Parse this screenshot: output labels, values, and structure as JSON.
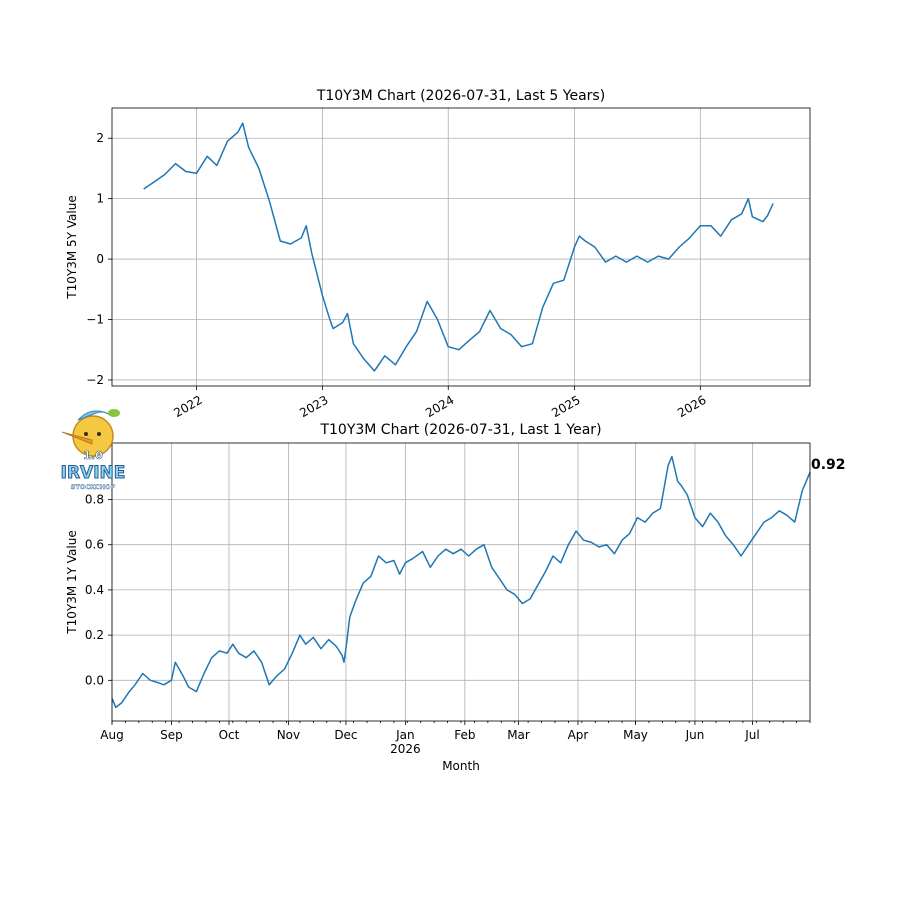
{
  "logo": {
    "text_top": "1.0",
    "text_main": "IRVINE",
    "text_sub": "STOCKCHOP"
  },
  "chart_data": [
    {
      "type": "line",
      "title": "T10Y3M Chart (2026-07-31, Last 5 Years)",
      "xlabel": "",
      "ylabel": "T10Y3M 5Y Value",
      "xlim": [
        "2021-05-01",
        "2026-11-15"
      ],
      "ylim": [
        -2.1,
        2.5
      ],
      "x_ticks": [
        {
          "date": "2022-01-01",
          "label": "2022"
        },
        {
          "date": "2023-01-01",
          "label": "2023"
        },
        {
          "date": "2024-01-01",
          "label": "2024"
        },
        {
          "date": "2025-01-01",
          "label": "2025"
        },
        {
          "date": "2026-01-01",
          "label": "2026"
        }
      ],
      "y_ticks": [
        -2,
        -1,
        0,
        1,
        2
      ],
      "grid": true,
      "series": [
        {
          "color": "#1f77b4",
          "points": [
            [
              "2021-08-01",
              1.16
            ],
            [
              "2021-09-01",
              1.28
            ],
            [
              "2021-10-01",
              1.4
            ],
            [
              "2021-11-01",
              1.58
            ],
            [
              "2021-12-01",
              1.45
            ],
            [
              "2022-01-01",
              1.42
            ],
            [
              "2022-02-01",
              1.7
            ],
            [
              "2022-03-01",
              1.55
            ],
            [
              "2022-04-01",
              1.95
            ],
            [
              "2022-05-01",
              2.1
            ],
            [
              "2022-05-15",
              2.25
            ],
            [
              "2022-06-01",
              1.85
            ],
            [
              "2022-07-01",
              1.5
            ],
            [
              "2022-08-01",
              0.95
            ],
            [
              "2022-09-01",
              0.3
            ],
            [
              "2022-10-01",
              0.25
            ],
            [
              "2022-11-01",
              0.35
            ],
            [
              "2022-11-15",
              0.55
            ],
            [
              "2022-12-01",
              0.1
            ],
            [
              "2023-01-01",
              -0.6
            ],
            [
              "2023-01-20",
              -0.95
            ],
            [
              "2023-02-01",
              -1.15
            ],
            [
              "2023-03-01",
              -1.05
            ],
            [
              "2023-03-15",
              -0.9
            ],
            [
              "2023-04-01",
              -1.4
            ],
            [
              "2023-05-01",
              -1.65
            ],
            [
              "2023-06-01",
              -1.85
            ],
            [
              "2023-07-01",
              -1.6
            ],
            [
              "2023-08-01",
              -1.75
            ],
            [
              "2023-09-01",
              -1.45
            ],
            [
              "2023-10-01",
              -1.2
            ],
            [
              "2023-11-01",
              -0.7
            ],
            [
              "2023-12-01",
              -1.0
            ],
            [
              "2024-01-01",
              -1.45
            ],
            [
              "2024-02-01",
              -1.5
            ],
            [
              "2024-03-01",
              -1.35
            ],
            [
              "2024-04-01",
              -1.2
            ],
            [
              "2024-05-01",
              -0.85
            ],
            [
              "2024-06-01",
              -1.15
            ],
            [
              "2024-07-01",
              -1.25
            ],
            [
              "2024-08-01",
              -1.45
            ],
            [
              "2024-09-01",
              -1.4
            ],
            [
              "2024-10-01",
              -0.8
            ],
            [
              "2024-11-01",
              -0.4
            ],
            [
              "2024-12-01",
              -0.35
            ],
            [
              "2025-01-01",
              0.2
            ],
            [
              "2025-01-15",
              0.38
            ],
            [
              "2025-02-01",
              0.3
            ],
            [
              "2025-03-01",
              0.2
            ],
            [
              "2025-04-01",
              -0.05
            ],
            [
              "2025-05-01",
              0.05
            ],
            [
              "2025-06-01",
              -0.05
            ],
            [
              "2025-07-01",
              0.05
            ],
            [
              "2025-08-01",
              -0.05
            ],
            [
              "2025-09-01",
              0.05
            ],
            [
              "2025-10-01",
              0.0
            ],
            [
              "2025-11-01",
              0.2
            ],
            [
              "2025-12-01",
              0.35
            ],
            [
              "2026-01-01",
              0.55
            ],
            [
              "2026-02-01",
              0.55
            ],
            [
              "2026-03-01",
              0.38
            ],
            [
              "2026-04-01",
              0.65
            ],
            [
              "2026-05-01",
              0.75
            ],
            [
              "2026-05-20",
              1.0
            ],
            [
              "2026-06-01",
              0.7
            ],
            [
              "2026-07-01",
              0.62
            ],
            [
              "2026-07-15",
              0.72
            ],
            [
              "2026-07-31",
              0.92
            ]
          ]
        }
      ]
    },
    {
      "type": "line",
      "title": "T10Y3M Chart (2026-07-31, Last 1 Year)",
      "xlabel": "Month",
      "ylabel": "T10Y3M 1Y Value",
      "xlim": [
        "2025-08-01",
        "2026-07-31"
      ],
      "ylim": [
        -0.18,
        1.05
      ],
      "x_ticks": [
        {
          "date": "2025-08-01",
          "label": "Aug"
        },
        {
          "date": "2025-09-01",
          "label": "Sep"
        },
        {
          "date": "2025-10-01",
          "label": "Oct"
        },
        {
          "date": "2025-11-01",
          "label": "Nov"
        },
        {
          "date": "2025-12-01",
          "label": "Dec"
        },
        {
          "date": "2026-01-01",
          "label": "Jan",
          "sublabel": "2026"
        },
        {
          "date": "2026-02-01",
          "label": "Feb"
        },
        {
          "date": "2026-03-01",
          "label": "Mar"
        },
        {
          "date": "2026-04-01",
          "label": "Apr"
        },
        {
          "date": "2026-05-01",
          "label": "May"
        },
        {
          "date": "2026-06-01",
          "label": "Jun"
        },
        {
          "date": "2026-07-01",
          "label": "Jul"
        }
      ],
      "y_ticks": [
        0.0,
        0.2,
        0.4,
        0.6,
        0.8
      ],
      "y_tick_labels": [
        "0.0",
        "0.2",
        "0.4",
        "0.6",
        "0.8"
      ],
      "grid": true,
      "last_value_label": "0.92",
      "series": [
        {
          "color": "#1f77b4",
          "points": [
            [
              "2025-08-01",
              -0.08
            ],
            [
              "2025-08-03",
              -0.12
            ],
            [
              "2025-08-06",
              -0.1
            ],
            [
              "2025-08-10",
              -0.05
            ],
            [
              "2025-08-13",
              -0.02
            ],
            [
              "2025-08-17",
              0.03
            ],
            [
              "2025-08-21",
              0.0
            ],
            [
              "2025-08-25",
              -0.01
            ],
            [
              "2025-08-28",
              -0.02
            ],
            [
              "2025-09-01",
              0.0
            ],
            [
              "2025-09-03",
              0.08
            ],
            [
              "2025-09-07",
              0.02
            ],
            [
              "2025-09-10",
              -0.03
            ],
            [
              "2025-09-14",
              -0.05
            ],
            [
              "2025-09-18",
              0.03
            ],
            [
              "2025-09-22",
              0.1
            ],
            [
              "2025-09-26",
              0.13
            ],
            [
              "2025-09-30",
              0.12
            ],
            [
              "2025-10-03",
              0.16
            ],
            [
              "2025-10-06",
              0.12
            ],
            [
              "2025-10-10",
              0.1
            ],
            [
              "2025-10-14",
              0.13
            ],
            [
              "2025-10-18",
              0.08
            ],
            [
              "2025-10-22",
              -0.02
            ],
            [
              "2025-10-26",
              0.02
            ],
            [
              "2025-10-30",
              0.05
            ],
            [
              "2025-11-03",
              0.12
            ],
            [
              "2025-11-07",
              0.2
            ],
            [
              "2025-11-10",
              0.16
            ],
            [
              "2025-11-14",
              0.19
            ],
            [
              "2025-11-18",
              0.14
            ],
            [
              "2025-11-22",
              0.18
            ],
            [
              "2025-11-26",
              0.15
            ],
            [
              "2025-11-29",
              0.11
            ],
            [
              "2025-11-30",
              0.08
            ],
            [
              "2025-12-01",
              0.14
            ],
            [
              "2025-12-03",
              0.28
            ],
            [
              "2025-12-06",
              0.35
            ],
            [
              "2025-12-10",
              0.43
            ],
            [
              "2025-12-14",
              0.46
            ],
            [
              "2025-12-18",
              0.55
            ],
            [
              "2025-12-22",
              0.52
            ],
            [
              "2025-12-26",
              0.53
            ],
            [
              "2025-12-29",
              0.47
            ],
            [
              "2026-01-01",
              0.52
            ],
            [
              "2026-01-05",
              0.54
            ],
            [
              "2026-01-10",
              0.57
            ],
            [
              "2026-01-14",
              0.5
            ],
            [
              "2026-01-18",
              0.55
            ],
            [
              "2026-01-22",
              0.58
            ],
            [
              "2026-01-26",
              0.56
            ],
            [
              "2026-01-30",
              0.58
            ],
            [
              "2026-02-03",
              0.55
            ],
            [
              "2026-02-07",
              0.58
            ],
            [
              "2026-02-11",
              0.6
            ],
            [
              "2026-02-15",
              0.5
            ],
            [
              "2026-02-19",
              0.45
            ],
            [
              "2026-02-23",
              0.4
            ],
            [
              "2026-02-27",
              0.38
            ],
            [
              "2026-03-03",
              0.34
            ],
            [
              "2026-03-07",
              0.36
            ],
            [
              "2026-03-11",
              0.42
            ],
            [
              "2026-03-15",
              0.48
            ],
            [
              "2026-03-19",
              0.55
            ],
            [
              "2026-03-23",
              0.52
            ],
            [
              "2026-03-27",
              0.6
            ],
            [
              "2026-03-31",
              0.66
            ],
            [
              "2026-04-04",
              0.62
            ],
            [
              "2026-04-08",
              0.61
            ],
            [
              "2026-04-12",
              0.59
            ],
            [
              "2026-04-16",
              0.6
            ],
            [
              "2026-04-20",
              0.56
            ],
            [
              "2026-04-24",
              0.62
            ],
            [
              "2026-04-28",
              0.65
            ],
            [
              "2026-05-02",
              0.72
            ],
            [
              "2026-05-06",
              0.7
            ],
            [
              "2026-05-10",
              0.74
            ],
            [
              "2026-05-14",
              0.76
            ],
            [
              "2026-05-18",
              0.95
            ],
            [
              "2026-05-20",
              0.99
            ],
            [
              "2026-05-23",
              0.88
            ],
            [
              "2026-05-25",
              0.86
            ],
            [
              "2026-05-28",
              0.82
            ],
            [
              "2026-06-01",
              0.72
            ],
            [
              "2026-06-05",
              0.68
            ],
            [
              "2026-06-09",
              0.74
            ],
            [
              "2026-06-13",
              0.7
            ],
            [
              "2026-06-17",
              0.64
            ],
            [
              "2026-06-21",
              0.6
            ],
            [
              "2026-06-25",
              0.55
            ],
            [
              "2026-06-29",
              0.6
            ],
            [
              "2026-07-03",
              0.65
            ],
            [
              "2026-07-07",
              0.7
            ],
            [
              "2026-07-11",
              0.72
            ],
            [
              "2026-07-15",
              0.75
            ],
            [
              "2026-07-19",
              0.73
            ],
            [
              "2026-07-23",
              0.7
            ],
            [
              "2026-07-27",
              0.84
            ],
            [
              "2026-07-31",
              0.92
            ]
          ]
        }
      ]
    }
  ]
}
